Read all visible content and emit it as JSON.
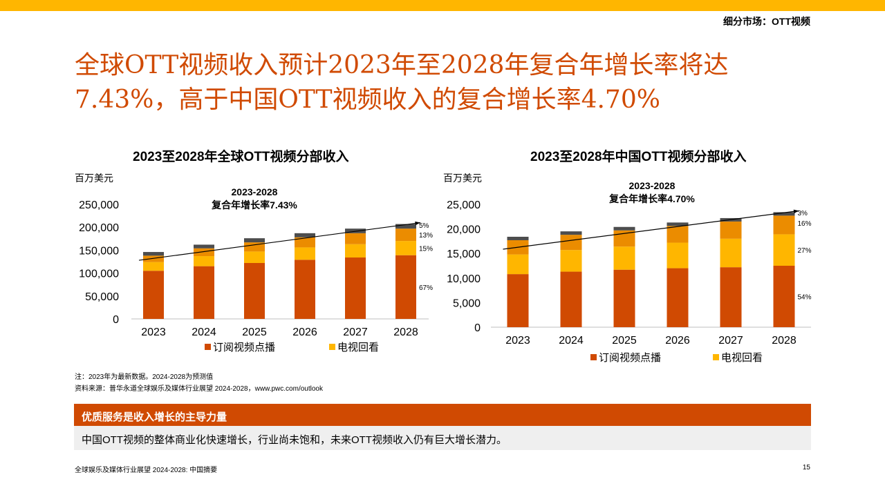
{
  "header": {
    "section_label": "细分市场：OTT视频",
    "headline_line1": "全球OTT视频收入预计2023年至2028年复合年增长率将达",
    "headline_line2": "7.43%，高于中国OTT视频收入的复合增长率4.70%"
  },
  "colors": {
    "top_bar": "#ffb600",
    "accent": "#d04a02",
    "svod": "#d04a02",
    "tv_replay": "#ffb600",
    "segment3": "#eb8c00",
    "segment4": "#4d4d4d",
    "panel_bg": "#efefef"
  },
  "chart_data": [
    {
      "type": "bar",
      "stacked": true,
      "title": "2023至2028年全球OTT视频分部收入",
      "ylabel": "百万美元",
      "categories": [
        "2023",
        "2024",
        "2025",
        "2026",
        "2027",
        "2028"
      ],
      "ylim": [
        0,
        250000
      ],
      "yticks": [
        0,
        50000,
        100000,
        150000,
        200000,
        250000
      ],
      "ytick_labels": [
        "0",
        "50,000",
        "100,000",
        "150,000",
        "200,000",
        "250,000"
      ],
      "series": [
        {
          "name": "订阅视频点播",
          "values": [
            105000,
            115000,
            122000,
            129000,
            134000,
            139000
          ]
        },
        {
          "name": "电视回看",
          "values": [
            19000,
            22000,
            25000,
            27000,
            29000,
            31000
          ]
        },
        {
          "values": [
            14000,
            17000,
            20000,
            22000,
            24000,
            27000
          ]
        },
        {
          "values": [
            8000,
            8000,
            9000,
            9000,
            10000,
            10000
          ]
        }
      ],
      "share_labels_2028": [
        "5%",
        "13%",
        "15%",
        "67%"
      ],
      "annotation": {
        "line1": "2023-2028",
        "line2": "复合年增长率7.43%"
      },
      "legend": [
        "订阅视频点播",
        "电视回看"
      ],
      "legend_position": "bottom"
    },
    {
      "type": "bar",
      "stacked": true,
      "title": "2023至2028年中国OTT视频分部收入",
      "ylabel": "百万美元",
      "categories": [
        "2023",
        "2024",
        "2025",
        "2026",
        "2027",
        "2028"
      ],
      "ylim": [
        0,
        25000
      ],
      "yticks": [
        0,
        5000,
        10000,
        15000,
        20000,
        25000
      ],
      "ytick_labels": [
        "0",
        "5,000",
        "10,000",
        "15,000",
        "20,000",
        "25,000"
      ],
      "series": [
        {
          "name": "订阅视频点播",
          "values": [
            10800,
            11300,
            11700,
            12000,
            12200,
            12500
          ]
        },
        {
          "name": "电视回看",
          "values": [
            4000,
            4400,
            4700,
            5200,
            5800,
            6400
          ]
        },
        {
          "values": [
            2900,
            3100,
            3300,
            3400,
            3500,
            3800
          ]
        },
        {
          "values": [
            700,
            700,
            700,
            700,
            700,
            700
          ]
        }
      ],
      "share_labels_2028": [
        "3%",
        "16%",
        "27%",
        "54%"
      ],
      "annotation": {
        "line1": "2023-2028",
        "line2": "复合年增长率4.70%"
      },
      "legend": [
        "订阅视频点播",
        "电视回看"
      ],
      "legend_position": "bottom"
    }
  ],
  "notes": {
    "note": "注：2023年为最新数据。2024-2028为预测值",
    "source": "资料来源：普华永道全球娱乐及媒体行业展望 2024-2028，www.pwc.com/outlook"
  },
  "banner": {
    "title": "优质服务是收入增长的主导力量",
    "text": "中国OTT视频的整体商业化快速增长，行业尚未饱和，未来OTT视频收入仍有巨大增长潜力。"
  },
  "footer": {
    "text": "全球娱乐及媒体行业展望 2024-2028: 中国摘要",
    "page": "15"
  }
}
